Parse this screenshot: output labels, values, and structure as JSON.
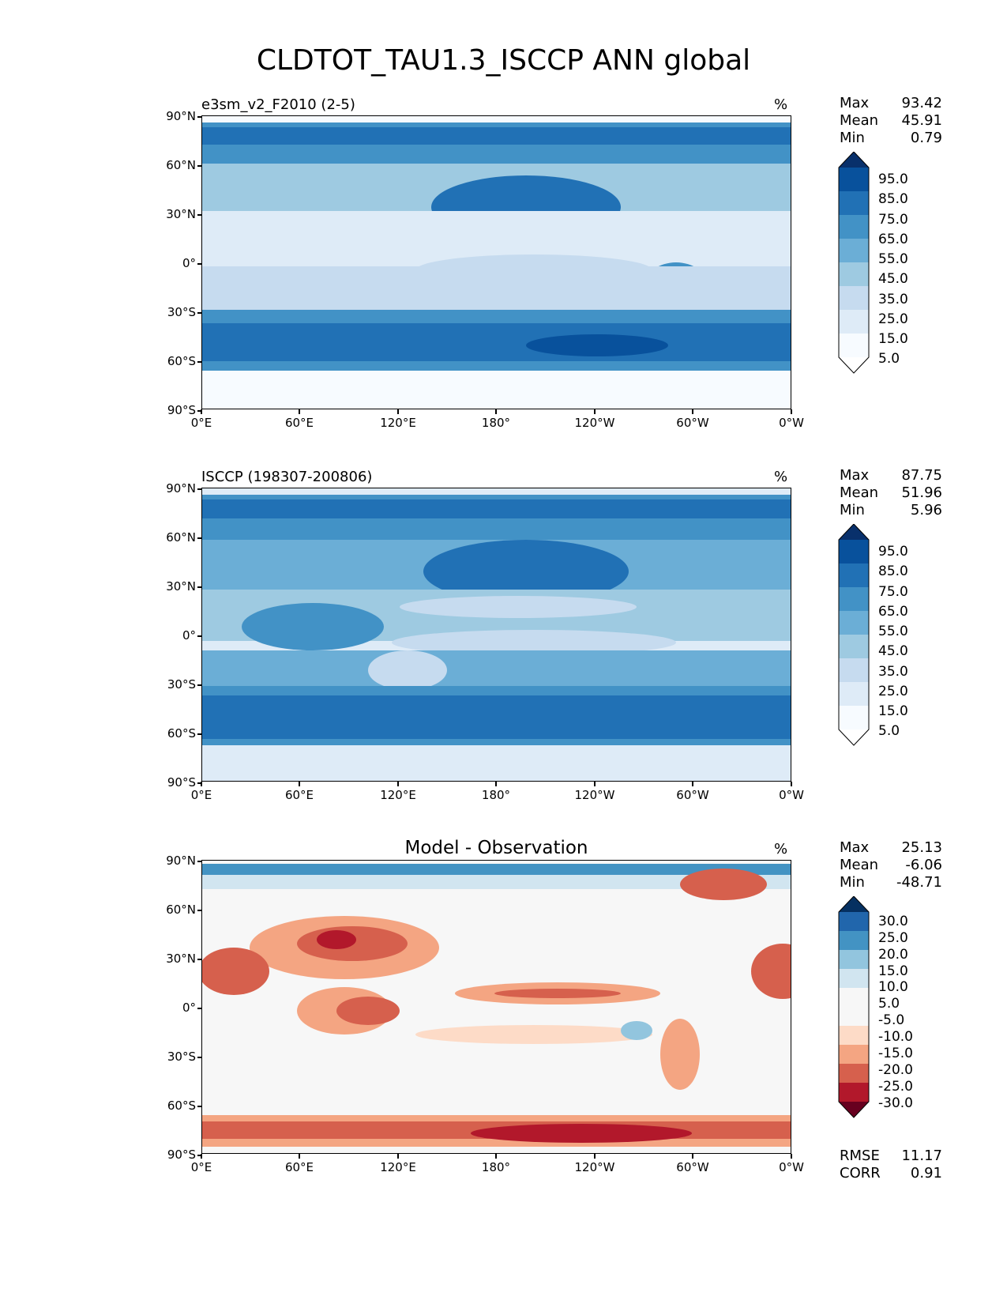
{
  "title": "CLDTOT_TAU1.3_ISCCP ANN global",
  "lat_ticks": [
    "90°N",
    "60°N",
    "30°N",
    "0°",
    "30°S",
    "60°S",
    "90°S"
  ],
  "lon_ticks": [
    "0°E",
    "60°E",
    "120°E",
    "180°",
    "120°W",
    "60°W",
    "0°W"
  ],
  "panels": [
    {
      "title": "e3sm_v2_F2010 (2-5)",
      "units": "%",
      "stats": [
        {
          "label": "Max",
          "value": "93.42"
        },
        {
          "label": "Mean",
          "value": "45.91"
        },
        {
          "label": "Min",
          "value": "0.79"
        }
      ],
      "colorbar": {
        "labels": [
          "95.0",
          "85.0",
          "75.0",
          "65.0",
          "55.0",
          "45.0",
          "35.0",
          "25.0",
          "15.0",
          "5.0"
        ],
        "colors": [
          "#08306b",
          "#08519c",
          "#2171b5",
          "#4292c6",
          "#6baed6",
          "#9ecae1",
          "#c6dbef",
          "#deebf7",
          "#f7fbff",
          "#ffffff"
        ]
      }
    },
    {
      "title": "ISCCP (198307-200806)",
      "units": "%",
      "stats": [
        {
          "label": "Max",
          "value": "87.75"
        },
        {
          "label": "Mean",
          "value": "51.96"
        },
        {
          "label": "Min",
          "value": "5.96"
        }
      ],
      "colorbar": {
        "labels": [
          "95.0",
          "85.0",
          "75.0",
          "65.0",
          "55.0",
          "45.0",
          "35.0",
          "25.0",
          "15.0",
          "5.0"
        ],
        "colors": [
          "#08306b",
          "#08519c",
          "#2171b5",
          "#4292c6",
          "#6baed6",
          "#9ecae1",
          "#c6dbef",
          "#deebf7",
          "#f7fbff",
          "#ffffff"
        ]
      }
    },
    {
      "title": "Model - Observation",
      "units": "%",
      "stats": [
        {
          "label": "Max",
          "value": "25.13"
        },
        {
          "label": "Mean",
          "value": "-6.06"
        },
        {
          "label": "Min",
          "value": "-48.71"
        }
      ],
      "colorbar": {
        "labels": [
          "30.0",
          "25.0",
          "20.0",
          "15.0",
          "10.0",
          "5.0",
          "-5.0",
          "-10.0",
          "-15.0",
          "-20.0",
          "-25.0",
          "-30.0"
        ],
        "colors": [
          "#053061",
          "#2166ac",
          "#4393c3",
          "#92c5de",
          "#d1e5f0",
          "#f7f7f7",
          "#f7f7f7",
          "#fddbc7",
          "#f4a582",
          "#d6604d",
          "#b2182b",
          "#67001f"
        ]
      },
      "extra_stats": [
        {
          "label": "RMSE",
          "value": "11.17"
        },
        {
          "label": "CORR",
          "value": "0.91"
        }
      ]
    }
  ]
}
